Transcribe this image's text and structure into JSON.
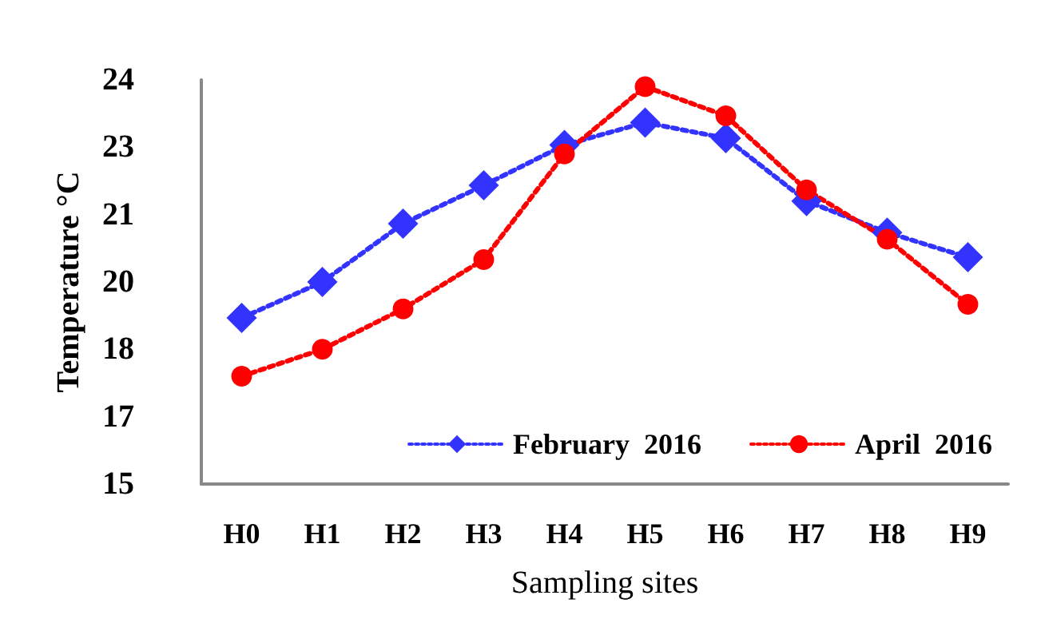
{
  "chart_data": {
    "type": "line",
    "xlabel": "Sampling sites",
    "ylabel": "Temperature °C",
    "categories": [
      "H0",
      "H1",
      "H2",
      "H3",
      "H4",
      "H5",
      "H6",
      "H7",
      "H8",
      "H9"
    ],
    "series": [
      {
        "name": "February  2016",
        "color": "#3333ff",
        "marker": "diamond",
        "values": [
          18.7,
          19.5,
          20.8,
          21.65,
          22.55,
          23.05,
          22.7,
          21.3,
          20.6,
          20.05
        ]
      },
      {
        "name": "April  2016",
        "color": "#ff0000",
        "marker": "circle",
        "values": [
          17.4,
          18.0,
          18.9,
          20.0,
          22.35,
          23.85,
          23.2,
          21.55,
          20.45,
          19.0
        ]
      }
    ],
    "ylim": [
      15,
      24
    ],
    "yticks": [
      15,
      {
        "value": 16.5,
        "label": "17"
      },
      18,
      {
        "value": 19.5,
        "label": "20"
      },
      21,
      {
        "value": 22.5,
        "label": "23"
      },
      24
    ],
    "grid": false,
    "legend": "bottom right",
    "line_style": "dotted"
  }
}
